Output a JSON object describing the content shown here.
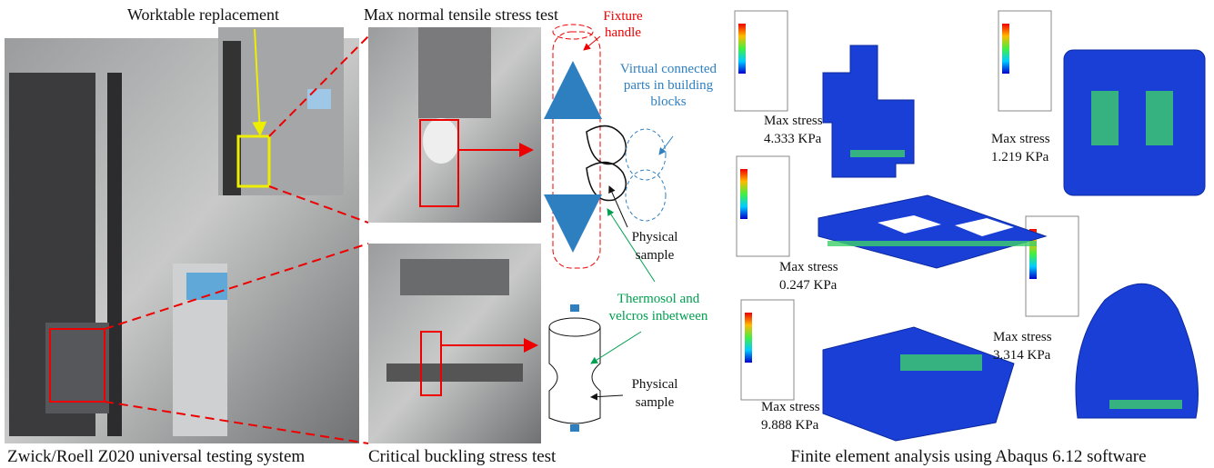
{
  "testing_system": {
    "caption": "Zwick/Roell Z020 universal testing system",
    "callout": "Worktable replacement"
  },
  "tests": {
    "tensile_title": "Max normal tensile stress test",
    "buckling_caption": "Critical buckling stress test"
  },
  "diagram": {
    "fixture": [
      "Fixture",
      "handle"
    ],
    "virtual": [
      "Virtual connected",
      "parts in building",
      "blocks"
    ],
    "physical_top": [
      "Physical",
      "sample"
    ],
    "thermosol": [
      "Thermosol and",
      "velcros inbetween"
    ],
    "physical_bottom": [
      "Physical",
      "sample"
    ]
  },
  "fea": {
    "caption": "Finite element analysis using Abaqus 6.12 software",
    "results": [
      [
        "Max stress",
        "4.333 KPa"
      ],
      [
        "Max stress",
        "1.219 KPa"
      ],
      [
        "Max stress",
        "0.247 KPa"
      ],
      [
        "Max stress",
        "3.314 KPa"
      ],
      [
        "Max stress",
        "9.888 KPa"
      ]
    ]
  }
}
